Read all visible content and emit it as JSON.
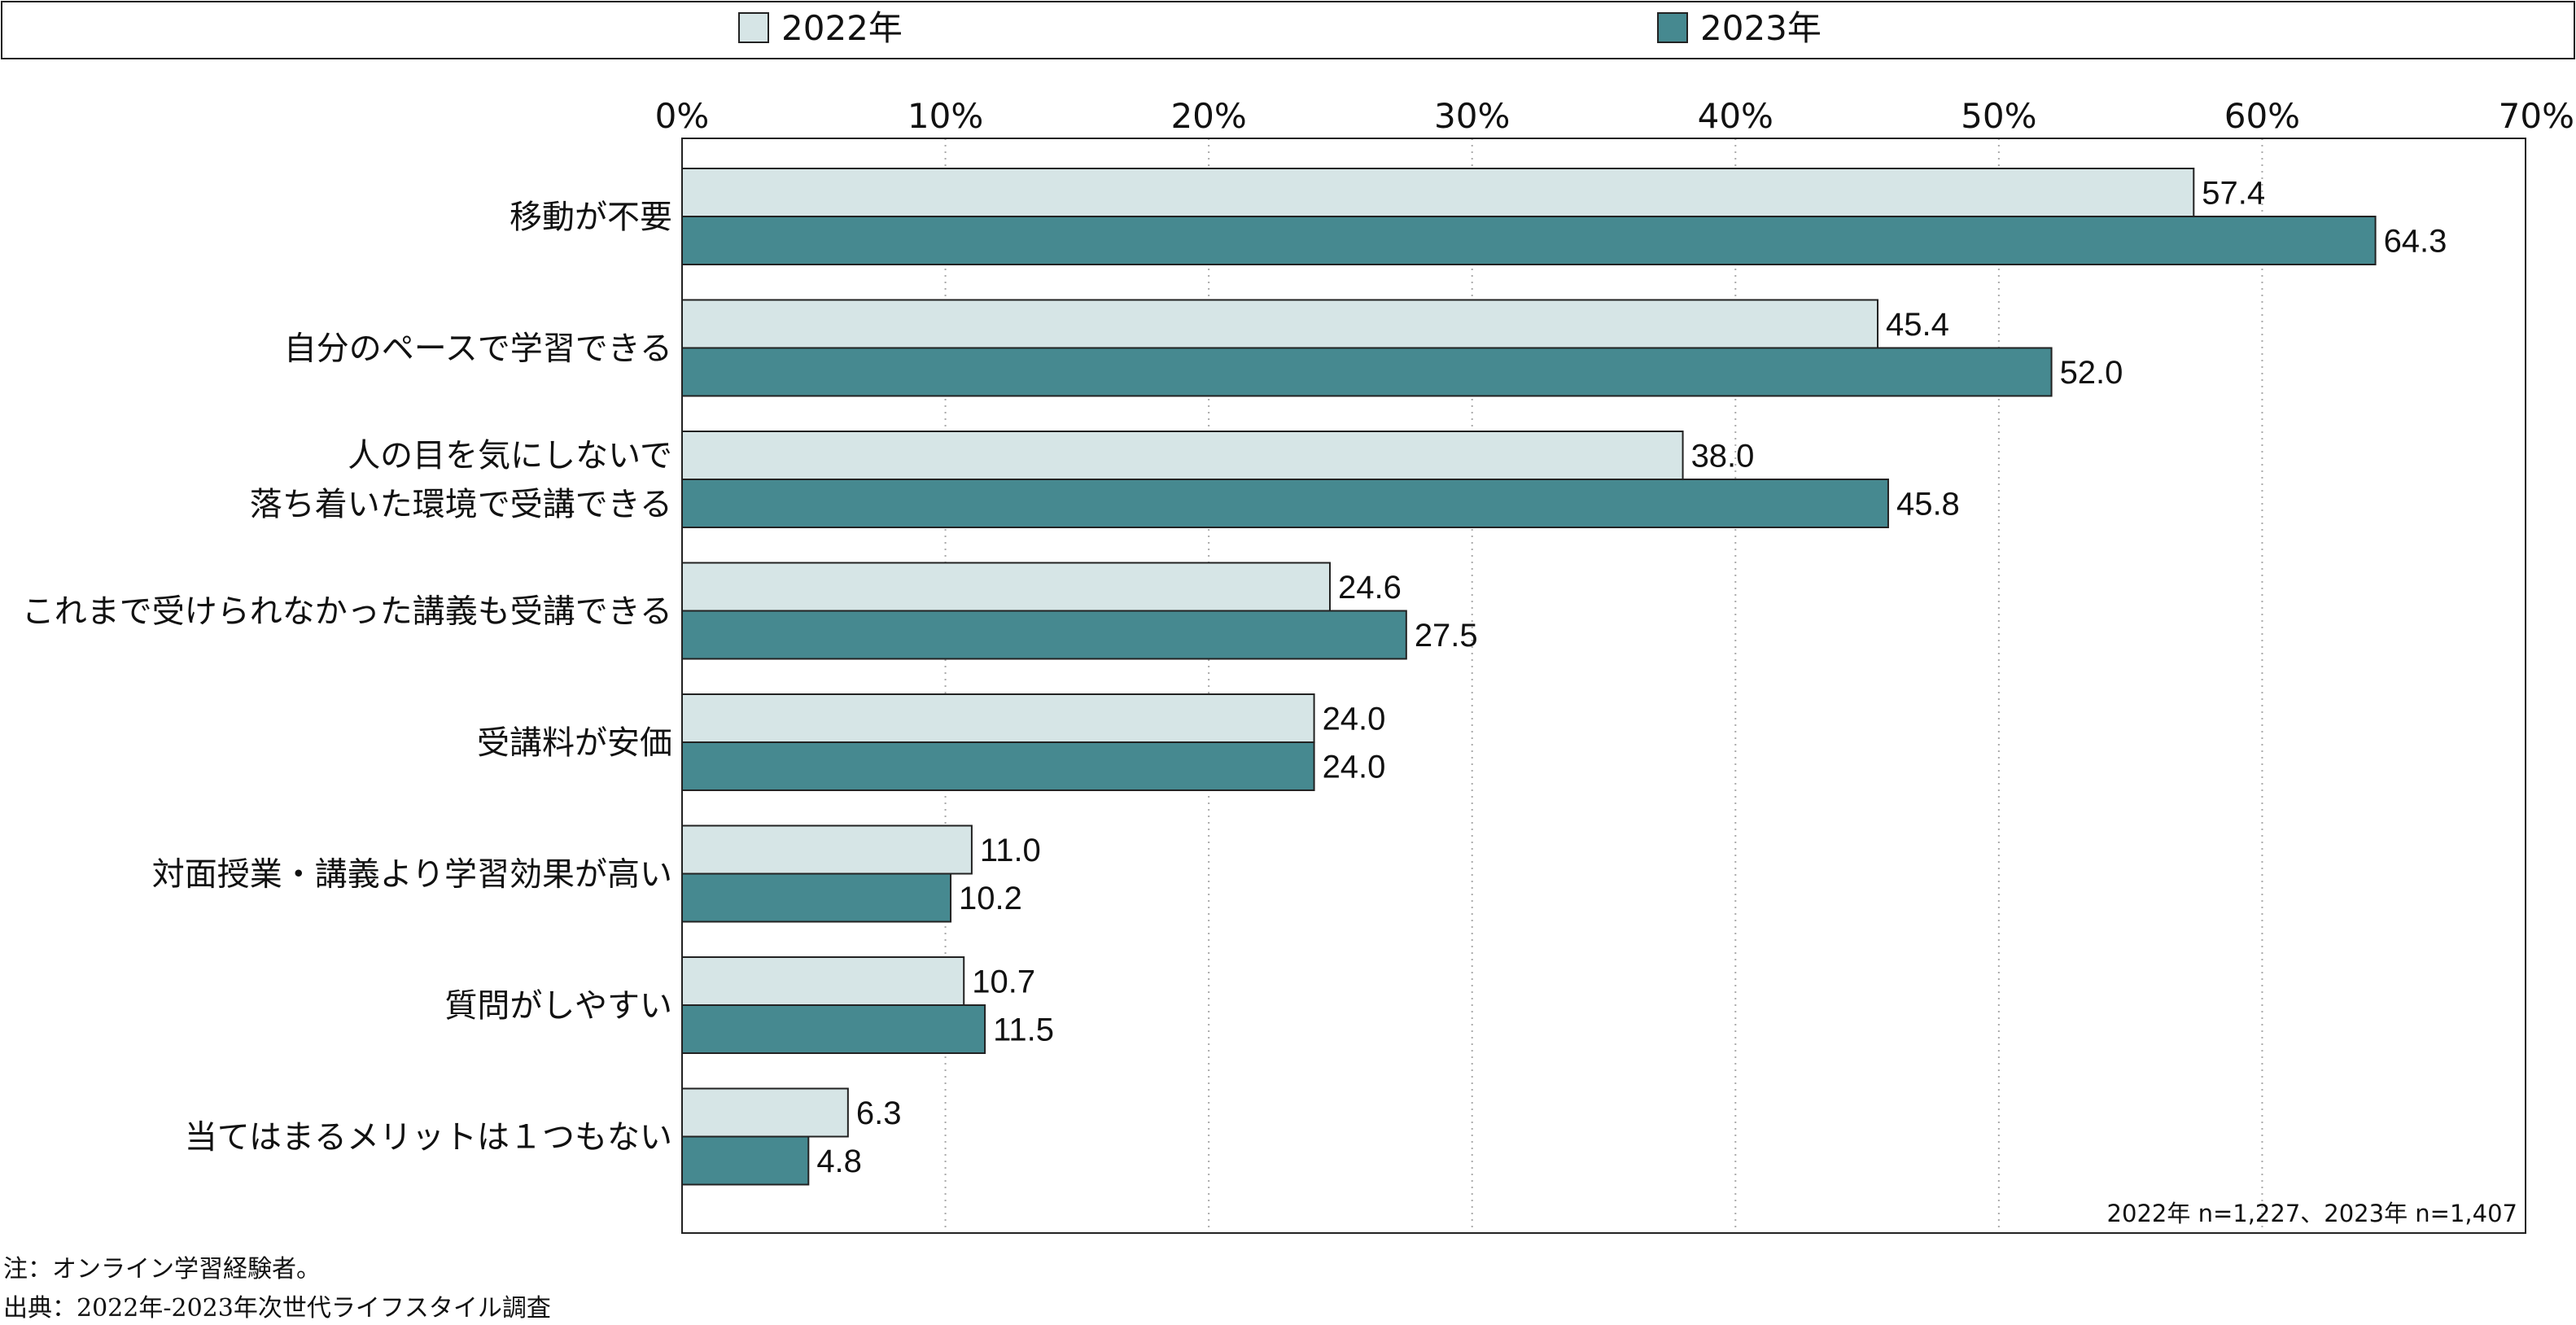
{
  "chart_data": {
    "type": "bar",
    "orientation": "horizontal",
    "categories": [
      [
        "移動が不要"
      ],
      [
        "自分のペースで学習できる"
      ],
      [
        "人の目を気にしないで",
        "落ち着いた環境で受講できる"
      ],
      [
        "これまで受けられなかった講義も受講できる"
      ],
      [
        "受講料が安価"
      ],
      [
        "対面授業・講義より学習効果が高い"
      ],
      [
        "質問がしやすい"
      ],
      [
        "当てはまるメリットは１つもない"
      ]
    ],
    "series": [
      {
        "name": "2022年",
        "color": "#d6e5e6",
        "values": [
          57.4,
          45.4,
          38.0,
          24.6,
          24.0,
          11.0,
          10.7,
          6.3
        ],
        "labels": [
          "57.4",
          "45.4",
          "38.0",
          "24.6",
          "24.0",
          "11.0",
          "10.7",
          "6.3"
        ]
      },
      {
        "name": "2023年",
        "color": "#468990",
        "values": [
          64.3,
          52.0,
          45.8,
          27.5,
          24.0,
          10.2,
          11.5,
          4.8
        ],
        "labels": [
          "64.3",
          "52.0",
          "45.8",
          "27.5",
          "24.0",
          "10.2",
          "11.5",
          "4.8"
        ]
      }
    ],
    "xlim": [
      0,
      70
    ],
    "xticks": [
      "0%",
      "10%",
      "20%",
      "30%",
      "40%",
      "50%",
      "60%",
      "70%"
    ],
    "grid": "vertical dotted",
    "legend": "top",
    "sample_note": "2022年 n=1,227、2023年 n=1,407"
  },
  "notes": {
    "note": "注：オンライン学習経験者。",
    "source": "出典：2022年-2023年次世代ライフスタイル調査"
  }
}
